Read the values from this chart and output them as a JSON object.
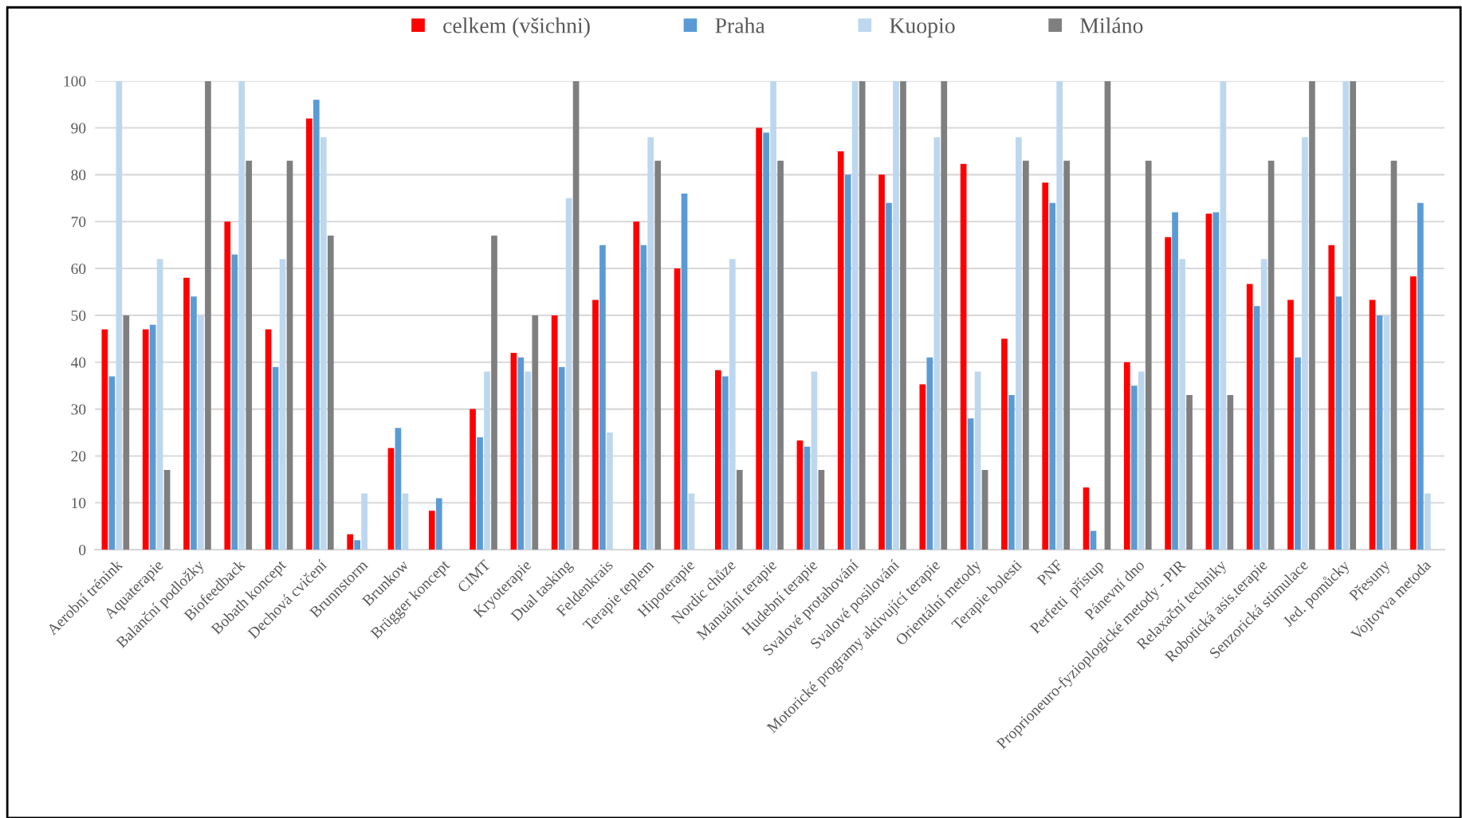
{
  "chart_data": {
    "type": "bar",
    "categories": [
      "Aerobní trénink",
      "Aquaterapie",
      "Balanční podložky",
      "Biofeedback",
      "Bobath koncept",
      "Dechová cvičení",
      "Brunnstorm",
      "Brunkow",
      "Brügger koncept",
      "CIMT",
      "Kryoterapie",
      "Dual tasking",
      "Feldenkrais",
      "Terapie teplem",
      "Hipoterapie",
      "Nordic chůze",
      "Manuální terapie",
      "Hudební terapie",
      "Svalové protahování",
      "Svalové posilování",
      "Motorické programy aktivující terapie",
      "Orientální metody",
      "Terapie bolesti",
      "PNF",
      "Perfetti  přístup",
      "Pánevní dno",
      "Proprioneuro-fyzioplogické metody - PIR",
      "Relaxační techniky",
      "Robotická asis.terapie",
      "Senzorická stimulace",
      "Jed. pomůcky",
      "Přesuny",
      "Vojtovva metoda"
    ],
    "series": [
      {
        "name": "celkem (všichni)",
        "color": "#ff0000",
        "values": [
          47,
          47,
          58,
          70,
          47,
          92,
          3.3,
          21.7,
          8.3,
          30,
          42,
          50,
          53.3,
          70,
          60,
          38.3,
          90,
          23.3,
          85,
          80,
          35.3,
          82.3,
          45,
          78.3,
          13.3,
          40,
          66.7,
          71.7,
          56.7,
          53.3,
          65,
          53.3,
          58.3
        ]
      },
      {
        "name": "Praha",
        "color": "#5b9bd5",
        "values": [
          37,
          48,
          54,
          63,
          39,
          96,
          2,
          26,
          11,
          24,
          41,
          39,
          65,
          65,
          76,
          37,
          89,
          22,
          80,
          74,
          41,
          28,
          33,
          74,
          4,
          35,
          72,
          72,
          52,
          41,
          54,
          50,
          74
        ]
      },
      {
        "name": "Kuopio",
        "color": "#bdd7ee",
        "values": [
          100,
          62,
          50,
          100,
          62,
          88,
          12,
          12,
          0,
          38,
          38,
          75,
          25,
          88,
          12,
          62,
          100,
          38,
          100,
          100,
          88,
          38,
          88,
          100,
          0,
          38,
          62,
          100,
          62,
          88,
          100,
          50,
          12
        ]
      },
      {
        "name": "Miláno",
        "color": "#7f7f7f",
        "values": [
          50,
          17,
          100,
          83,
          83,
          67,
          0,
          0,
          0,
          67,
          50,
          100,
          0,
          83,
          0,
          17,
          83,
          17,
          100,
          100,
          100,
          17,
          83,
          83,
          100,
          83,
          33,
          33,
          83,
          100,
          100,
          83,
          0
        ]
      }
    ],
    "ylim": [
      0,
      100
    ],
    "yticks": [
      0,
      10,
      20,
      30,
      40,
      50,
      60,
      70,
      80,
      90,
      100
    ],
    "grid": "y",
    "legend": "top"
  }
}
